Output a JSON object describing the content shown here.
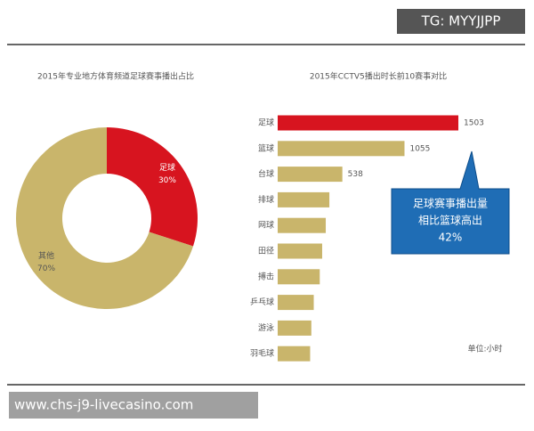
{
  "overlays": {
    "top_tag": "TG: MYYJJPP",
    "bottom_url": "www.chs-j9-livecasino.com"
  },
  "chart_data": [
    {
      "type": "pie",
      "title": "2015年专业地方体育频道足球赛事播出占比",
      "categories": [
        "足球",
        "其他"
      ],
      "values": [
        30,
        70
      ],
      "value_labels": [
        "30%",
        "70%"
      ],
      "colors": [
        "#d7141f",
        "#c9b56b"
      ],
      "hole": true
    },
    {
      "type": "hbar",
      "title": "2015年CCTV5播出时长前10赛事对比",
      "categories": [
        "足球",
        "篮球",
        "台球",
        "排球",
        "网球",
        "田径",
        "搏击",
        "乒乓球",
        "游泳",
        "羽毛球"
      ],
      "values": [
        1503,
        1055,
        538,
        430,
        400,
        370,
        350,
        300,
        280,
        270
      ],
      "value_labels": [
        "1503",
        "1055",
        "538",
        null,
        null,
        null,
        null,
        null,
        null,
        null
      ],
      "colors": [
        "#d7141f",
        "#c9b56b",
        "#c9b56b",
        "#c9b56b",
        "#c9b56b",
        "#c9b56b",
        "#c9b56b",
        "#c9b56b",
        "#c9b56b",
        "#c9b56b"
      ],
      "unit_note": "单位:小时",
      "annotation": [
        "足球赛事播出量",
        "相比篮球高出",
        "42%"
      ]
    }
  ]
}
